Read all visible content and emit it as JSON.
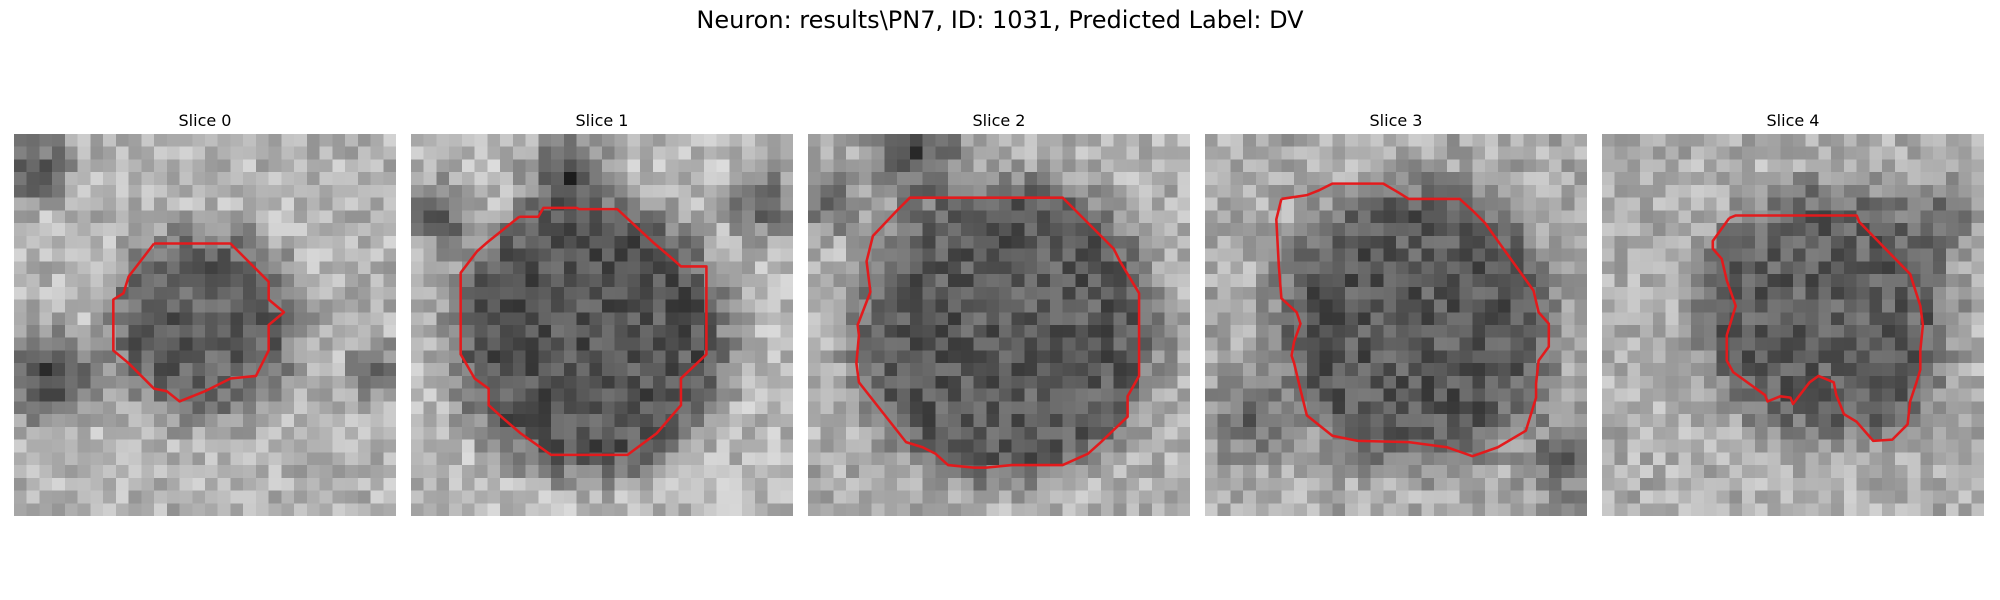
{
  "figure": {
    "title": "Neuron: results\\PN7, ID: 1031, Predicted Label: DV"
  },
  "panels": [
    {
      "title": "Slice 0"
    },
    {
      "title": "Slice 1"
    },
    {
      "title": "Slice 2"
    },
    {
      "title": "Slice 3"
    },
    {
      "title": "Slice 4"
    }
  ],
  "colors": {
    "contour": "#e31a1c",
    "background": "#ffffff"
  },
  "image": {
    "colormap": "gray",
    "grid_size": 30
  }
}
